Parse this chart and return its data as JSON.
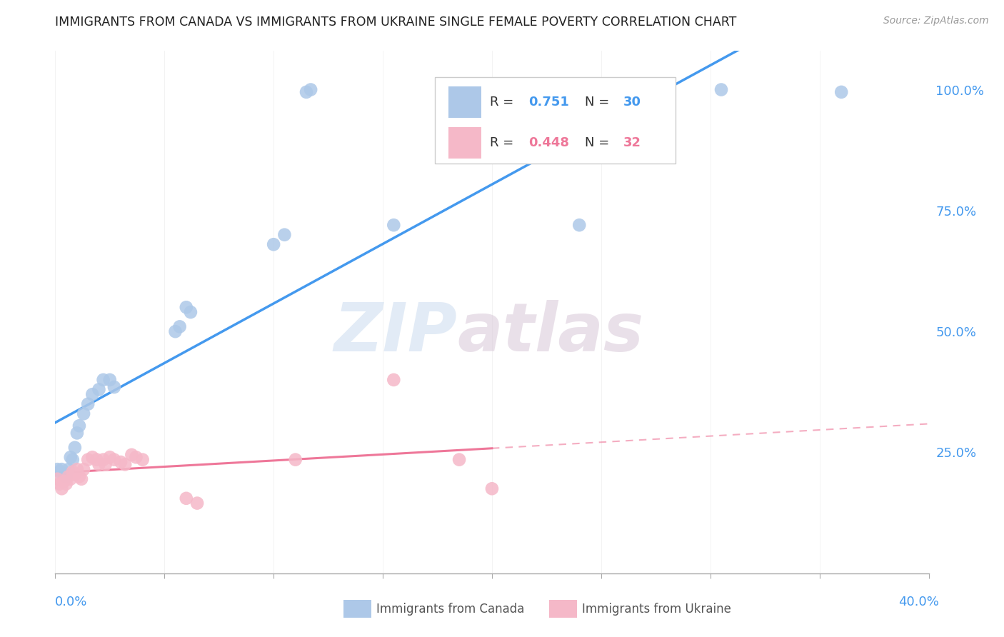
{
  "title": "IMMIGRANTS FROM CANADA VS IMMIGRANTS FROM UKRAINE SINGLE FEMALE POVERTY CORRELATION CHART",
  "source": "Source: ZipAtlas.com",
  "ylabel": "Single Female Poverty",
  "canada_R": 0.751,
  "canada_N": 30,
  "ukraine_R": 0.448,
  "ukraine_N": 32,
  "canada_color": "#adc8e8",
  "ukraine_color": "#f5b8c8",
  "canada_line_color": "#4499ee",
  "ukraine_line_color": "#ee7799",
  "canada_scatter": [
    [
      0.001,
      0.215
    ],
    [
      0.002,
      0.21
    ],
    [
      0.003,
      0.215
    ],
    [
      0.004,
      0.205
    ],
    [
      0.005,
      0.2
    ],
    [
      0.006,
      0.215
    ],
    [
      0.007,
      0.24
    ],
    [
      0.008,
      0.235
    ],
    [
      0.009,
      0.26
    ],
    [
      0.01,
      0.29
    ],
    [
      0.011,
      0.305
    ],
    [
      0.013,
      0.33
    ],
    [
      0.015,
      0.35
    ],
    [
      0.017,
      0.37
    ],
    [
      0.02,
      0.38
    ],
    [
      0.022,
      0.4
    ],
    [
      0.025,
      0.4
    ],
    [
      0.027,
      0.385
    ],
    [
      0.055,
      0.5
    ],
    [
      0.057,
      0.51
    ],
    [
      0.06,
      0.55
    ],
    [
      0.062,
      0.54
    ],
    [
      0.1,
      0.68
    ],
    [
      0.105,
      0.7
    ],
    [
      0.115,
      0.995
    ],
    [
      0.117,
      1.0
    ],
    [
      0.155,
      0.72
    ],
    [
      0.24,
      0.72
    ],
    [
      0.305,
      1.0
    ],
    [
      0.36,
      0.995
    ]
  ],
  "ukraine_scatter": [
    [
      0.001,
      0.195
    ],
    [
      0.002,
      0.185
    ],
    [
      0.003,
      0.175
    ],
    [
      0.004,
      0.19
    ],
    [
      0.005,
      0.185
    ],
    [
      0.006,
      0.2
    ],
    [
      0.007,
      0.195
    ],
    [
      0.008,
      0.21
    ],
    [
      0.009,
      0.205
    ],
    [
      0.01,
      0.215
    ],
    [
      0.011,
      0.2
    ],
    [
      0.012,
      0.195
    ],
    [
      0.013,
      0.215
    ],
    [
      0.015,
      0.235
    ],
    [
      0.017,
      0.24
    ],
    [
      0.019,
      0.235
    ],
    [
      0.02,
      0.225
    ],
    [
      0.022,
      0.235
    ],
    [
      0.023,
      0.225
    ],
    [
      0.025,
      0.24
    ],
    [
      0.027,
      0.235
    ],
    [
      0.03,
      0.23
    ],
    [
      0.032,
      0.225
    ],
    [
      0.035,
      0.245
    ],
    [
      0.037,
      0.24
    ],
    [
      0.04,
      0.235
    ],
    [
      0.06,
      0.155
    ],
    [
      0.065,
      0.145
    ],
    [
      0.11,
      0.235
    ],
    [
      0.155,
      0.4
    ],
    [
      0.185,
      0.235
    ],
    [
      0.2,
      0.175
    ]
  ],
  "watermark_zip": "ZIP",
  "watermark_atlas": "atlas",
  "background_color": "#ffffff",
  "grid_color": "#dddddd",
  "xlim": [
    0.0,
    0.4
  ],
  "ylim": [
    0.0,
    1.08
  ],
  "x_percent_max": "40.0%",
  "x_percent_min": "0.0%",
  "y_ticks": [
    0.25,
    0.5,
    0.75,
    1.0
  ],
  "y_tick_labels": [
    "25.0%",
    "50.0%",
    "75.0%",
    "100.0%"
  ]
}
